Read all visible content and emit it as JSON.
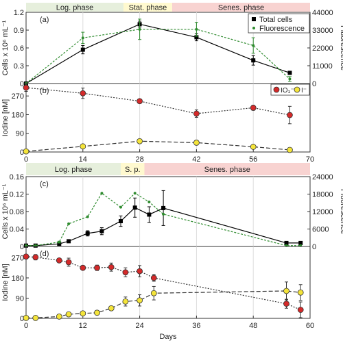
{
  "chart_data": [
    {
      "id": "a",
      "type": "line",
      "panel_label": "(a)",
      "xlim": [
        0,
        70
      ],
      "ylim": [
        0,
        1.2
      ],
      "y2lim": [
        0,
        44000
      ],
      "ylabel": "Cells x 10⁶ mL⁻¹",
      "y2label": "Fluorescence",
      "yticks": [
        "0",
        "0.3",
        "0.6",
        "0.9",
        "1.2"
      ],
      "yticks_values": [
        0,
        0.3,
        0.6,
        0.9,
        1.2
      ],
      "y2ticks": [
        "0",
        "11000",
        "22000",
        "33000",
        "44000"
      ],
      "y2ticks_values": [
        0,
        11000,
        22000,
        33000,
        44000
      ],
      "xgrid": [
        0,
        14,
        28,
        42,
        56,
        70
      ],
      "phases": [
        {
          "label": "Log. phase",
          "x0": 0,
          "x1": 24,
          "color": "#e6efdc"
        },
        {
          "label": "Stat. phase",
          "x0": 24,
          "x1": 36,
          "color": "#fff9cf"
        },
        {
          "label": "Senes. phase",
          "x0": 36,
          "x1": 70,
          "color": "#f8d3d1"
        }
      ],
      "legend": {
        "position": "top-right",
        "items": [
          "Total cells",
          "Fluorescence"
        ]
      },
      "series": [
        {
          "name": "Total cells",
          "axis": "left",
          "color": "#000000",
          "marker": "square",
          "dash": "",
          "x": [
            0,
            14,
            28,
            42,
            56,
            65
          ],
          "y": [
            0.0,
            0.57,
            1.0,
            0.78,
            0.39,
            0.18
          ],
          "err": [
            0.0,
            0.07,
            0.05,
            0.06,
            0.08,
            0.0
          ]
        },
        {
          "name": "Fluorescence",
          "axis": "right",
          "color": "#2e8b2e",
          "marker": "dot",
          "dash": "3,2",
          "x": [
            0,
            14,
            28,
            42,
            56,
            65
          ],
          "y": [
            0,
            28200,
            33500,
            33500,
            23500,
            2800
          ],
          "err": [
            0,
            3500,
            6300,
            4300,
            4800,
            1500
          ]
        }
      ]
    },
    {
      "id": "b",
      "type": "line",
      "panel_label": "(b)",
      "xlim": [
        0,
        70
      ],
      "ylim": [
        0,
        330
      ],
      "ylabel": "Iodine [nM]",
      "yticks": [
        "0",
        "90",
        "180",
        "270"
      ],
      "yticks_values": [
        0,
        90,
        180,
        270
      ],
      "xticks": [
        "0",
        "14",
        "28",
        "42",
        "56",
        "70"
      ],
      "xticks_values": [
        0,
        14,
        28,
        42,
        56,
        70
      ],
      "legend": {
        "position": "top-right",
        "items": [
          "IO₃⁻",
          "I⁻"
        ]
      },
      "series": [
        {
          "name": "IO₃⁻",
          "color": "#d42a2a",
          "marker": "circle",
          "dash": "2,2",
          "x": [
            0,
            14,
            28,
            42,
            56,
            65
          ],
          "y": [
            310,
            283,
            245,
            185,
            213,
            178
          ],
          "err": [
            18,
            25,
            5,
            18,
            12,
            42
          ]
        },
        {
          "name": "I⁻",
          "color": "#f4e43a",
          "marker": "circle",
          "dash": "6,3",
          "x": [
            0,
            14,
            28,
            42,
            56,
            65
          ],
          "y": [
            3,
            27,
            52,
            45,
            25,
            10
          ],
          "err": [
            0,
            8,
            10,
            12,
            5,
            2
          ]
        }
      ]
    },
    {
      "id": "c",
      "type": "line",
      "panel_label": "(c)",
      "xlim": [
        0,
        60
      ],
      "ylim": [
        0,
        0.16
      ],
      "y2lim": [
        0,
        24000
      ],
      "ylabel": "Cells x 10⁶ mL⁻¹",
      "y2label": "Fluorescence",
      "yticks": [
        "0",
        "0.04",
        "0.08",
        "0.12",
        "0.16"
      ],
      "yticks_values": [
        0,
        0.04,
        0.08,
        0.12,
        0.16
      ],
      "y2ticks": [
        "0",
        "6000",
        "12000",
        "18000",
        "24000"
      ],
      "y2ticks_values": [
        0,
        6000,
        12000,
        18000,
        24000
      ],
      "xgrid": [
        0,
        12,
        24,
        36,
        48,
        60
      ],
      "phases": [
        {
          "label": "Log. phase",
          "x0": 0,
          "x1": 20,
          "color": "#e6efdc"
        },
        {
          "label": "S. p.",
          "x0": 20,
          "x1": 25,
          "color": "#fff9cf"
        },
        {
          "label": "Senes. phase",
          "x0": 25,
          "x1": 60,
          "color": "#f8d3d1"
        }
      ],
      "series": [
        {
          "name": "Total cells",
          "axis": "left",
          "color": "#000000",
          "marker": "square",
          "dash": "",
          "x": [
            0,
            2,
            7,
            9,
            13,
            16,
            20,
            23,
            26,
            29,
            55,
            58
          ],
          "y": [
            0.002,
            0.002,
            0.006,
            0.012,
            0.03,
            0.035,
            0.058,
            0.089,
            0.073,
            0.088,
            0.008,
            0.008
          ],
          "err": [
            0,
            0,
            0.002,
            0.002,
            0.006,
            0.008,
            0.012,
            0.022,
            0.018,
            0.04,
            0.003,
            0.002
          ]
        },
        {
          "name": "Fluorescence",
          "axis": "right",
          "color": "#2e8b2e",
          "marker": "dot",
          "dash": "3,2",
          "x": [
            0,
            2,
            7,
            9,
            13,
            16,
            20,
            23,
            26,
            29,
            55,
            58
          ],
          "y": [
            300,
            300,
            1500,
            7800,
            10200,
            18300,
            13500,
            18300,
            15300,
            11100,
            300,
            300
          ],
          "err": [
            0,
            0,
            300,
            0,
            0,
            0,
            0,
            0,
            0,
            0,
            0,
            0
          ]
        }
      ]
    },
    {
      "id": "d",
      "type": "line",
      "panel_label": "(d)",
      "xlim": [
        0,
        60
      ],
      "ylim": [
        0,
        320
      ],
      "ylabel": "Iodine [nM]",
      "xlabel": "Days",
      "yticks": [
        "0",
        "90",
        "180",
        "270"
      ],
      "yticks_values": [
        0,
        90,
        180,
        270
      ],
      "xticks": [
        "0",
        "12",
        "24",
        "36",
        "48",
        "60"
      ],
      "xticks_values": [
        0,
        12,
        24,
        36,
        48,
        60
      ],
      "series": [
        {
          "name": "IO₃⁻",
          "color": "#d42a2a",
          "marker": "circle",
          "dash": "2,2",
          "x": [
            0,
            2,
            7,
            9,
            12,
            15,
            18,
            21,
            24,
            27,
            55,
            58
          ],
          "y": [
            275,
            272,
            258,
            250,
            225,
            225,
            228,
            205,
            210,
            180,
            65,
            38
          ],
          "err": [
            10,
            12,
            8,
            18,
            10,
            12,
            18,
            20,
            25,
            15,
            20,
            35
          ]
        },
        {
          "name": "I⁻",
          "color": "#f4e43a",
          "marker": "circle",
          "dash": "6,3",
          "x": [
            0,
            2,
            7,
            9,
            12,
            15,
            18,
            21,
            24,
            27,
            55,
            58
          ],
          "y": [
            2,
            2,
            8,
            18,
            22,
            25,
            45,
            75,
            80,
            112,
            122,
            115
          ],
          "err": [
            0,
            0,
            2,
            3,
            5,
            5,
            8,
            20,
            25,
            30,
            40,
            35
          ]
        }
      ]
    }
  ]
}
